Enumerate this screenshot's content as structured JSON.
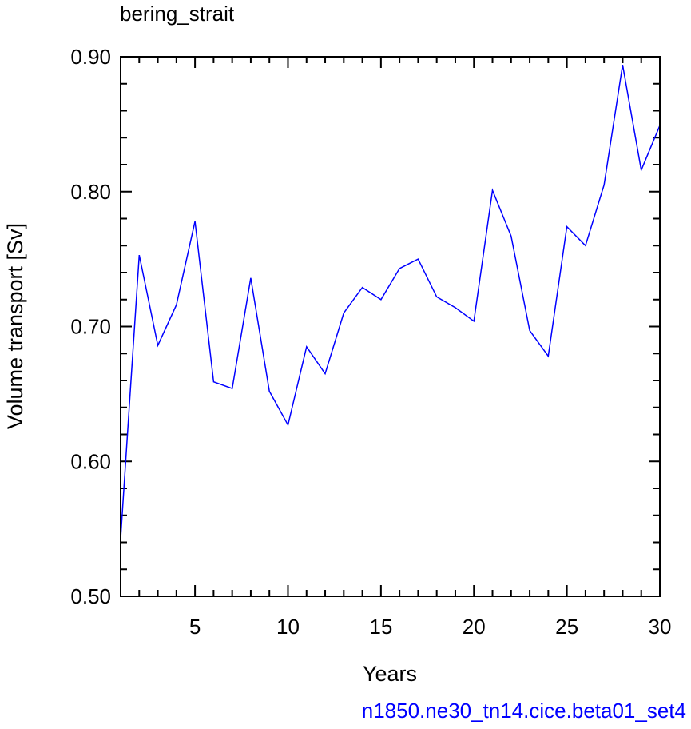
{
  "chart_data": {
    "type": "line",
    "title": "bering_strait",
    "xlabel": "Years",
    "ylabel": "Volume transport [Sv]",
    "xlim": [
      1,
      30
    ],
    "ylim": [
      0.5,
      0.9
    ],
    "xticks": [
      5,
      10,
      15,
      20,
      25,
      30
    ],
    "yticks": [
      "0.50",
      "0.60",
      "0.70",
      "0.80",
      "0.90"
    ],
    "grid": false,
    "series": [
      {
        "color": "#0000ff",
        "x": [
          1,
          2,
          3,
          4,
          5,
          6,
          7,
          8,
          9,
          10,
          11,
          12,
          13,
          14,
          15,
          16,
          17,
          18,
          19,
          20,
          21,
          22,
          23,
          24,
          25,
          26,
          27,
          28,
          29,
          30
        ],
        "y": [
          0.543,
          0.753,
          0.686,
          0.716,
          0.778,
          0.659,
          0.654,
          0.736,
          0.652,
          0.627,
          0.685,
          0.665,
          0.71,
          0.729,
          0.72,
          0.743,
          0.75,
          0.722,
          0.714,
          0.704,
          0.801,
          0.767,
          0.697,
          0.678,
          0.774,
          0.76,
          0.805,
          0.894,
          0.816,
          0.849
        ]
      }
    ]
  },
  "credit": {
    "text": "n1850.ne30_tn14.cice.beta01_set4",
    "color": "#0000ff"
  }
}
